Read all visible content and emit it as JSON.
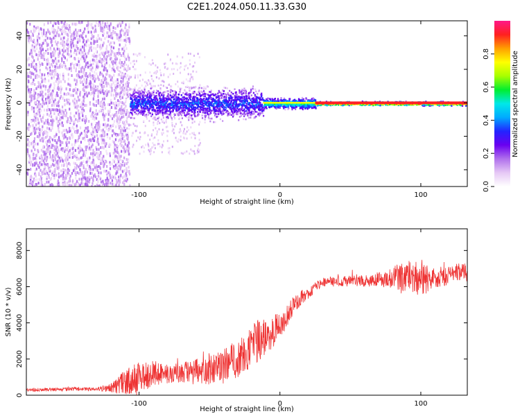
{
  "figure": {
    "title": "C2E1.2024.050.11.33.G30"
  },
  "chart_data": [
    {
      "type": "heatmap",
      "xlabel": "Height of straight line (km)",
      "ylabel": "Frequency (Hz)",
      "xlim": [
        -180,
        133
      ],
      "ylim": [
        -50,
        49
      ],
      "x_ticks": [
        -100,
        0,
        100
      ],
      "y_ticks": [
        -40,
        -20,
        0,
        20,
        40
      ],
      "x_tick_labels": [
        "-100",
        "0",
        "100"
      ],
      "y_tick_labels": [
        "-40",
        "-20",
        "0",
        "20",
        "40"
      ],
      "colorbar": {
        "label": "Normalized spectral amplitude",
        "range": [
          0,
          1
        ],
        "ticks": [
          0.0,
          0.2,
          0.4,
          0.6,
          0.8
        ],
        "tick_labels": [
          "0.0",
          "0.2",
          "0.4",
          "0.6",
          "0.8"
        ],
        "colors": [
          "#ffffff",
          "#e6c8f5",
          "#b070ec",
          "#6a00f0",
          "#2323ff",
          "#00aaff",
          "#00e8e8",
          "#00ee30",
          "#a8ff00",
          "#ffff00",
          "#ffa000",
          "#ff2020",
          "#ff1888"
        ]
      },
      "regions": [
        {
          "x": [
            -180,
            -107
          ],
          "frequency_band": [
            -50,
            49
          ],
          "amplitude": 0.12,
          "description": "broadband noise"
        },
        {
          "x": [
            -107,
            -12
          ],
          "frequency_band": [
            -12,
            12
          ],
          "amplitude": 0.35
        },
        {
          "x": [
            -12,
            25
          ],
          "frequency_band": [
            -4,
            4
          ],
          "amplitude": 0.55
        },
        {
          "x": [
            25,
            133
          ],
          "frequency_band": [
            -1.5,
            1.5
          ],
          "amplitude": 0.9
        }
      ]
    },
    {
      "type": "line",
      "xlabel": "Height of straight line (km)",
      "ylabel": "SNR (10 * v/v)",
      "xlim": [
        -180,
        133
      ],
      "ylim": [
        0,
        9200
      ],
      "x_ticks": [
        -100,
        0,
        100
      ],
      "y_ticks": [
        0,
        2000,
        4000,
        6000,
        8000
      ],
      "x_tick_labels": [
        "-100",
        "0",
        "100"
      ],
      "y_tick_labels": [
        "0",
        "2000",
        "4000",
        "6000",
        "8000"
      ],
      "series": [
        {
          "color": "#ee3333",
          "x": [
            -180,
            -170,
            -160,
            -150,
            -140,
            -130,
            -120,
            -110,
            -100,
            -90,
            -80,
            -70,
            -60,
            -50,
            -40,
            -30,
            -20,
            -15,
            -10,
            -5,
            0,
            5,
            10,
            15,
            20,
            25,
            30,
            40,
            50,
            60,
            70,
            80,
            90,
            100,
            110,
            120,
            133
          ],
          "y": [
            300,
            300,
            320,
            330,
            330,
            340,
            400,
            700,
            1000,
            1200,
            1200,
            1250,
            1300,
            1400,
            1700,
            2000,
            2700,
            3000,
            3200,
            3500,
            3800,
            4400,
            5000,
            5400,
            5600,
            6000,
            6200,
            6300,
            6300,
            6350,
            6400,
            6500,
            6600,
            6400,
            6500,
            6600,
            6800
          ],
          "noise": [
            100,
            100,
            100,
            100,
            100,
            100,
            250,
            700,
            900,
            700,
            600,
            600,
            700,
            800,
            900,
            1100,
            1200,
            1200,
            1000,
            900,
            800,
            600,
            500,
            400,
            300,
            300,
            300,
            300,
            300,
            350,
            400,
            600,
            900,
            1000,
            600,
            500,
            500
          ]
        }
      ]
    }
  ]
}
